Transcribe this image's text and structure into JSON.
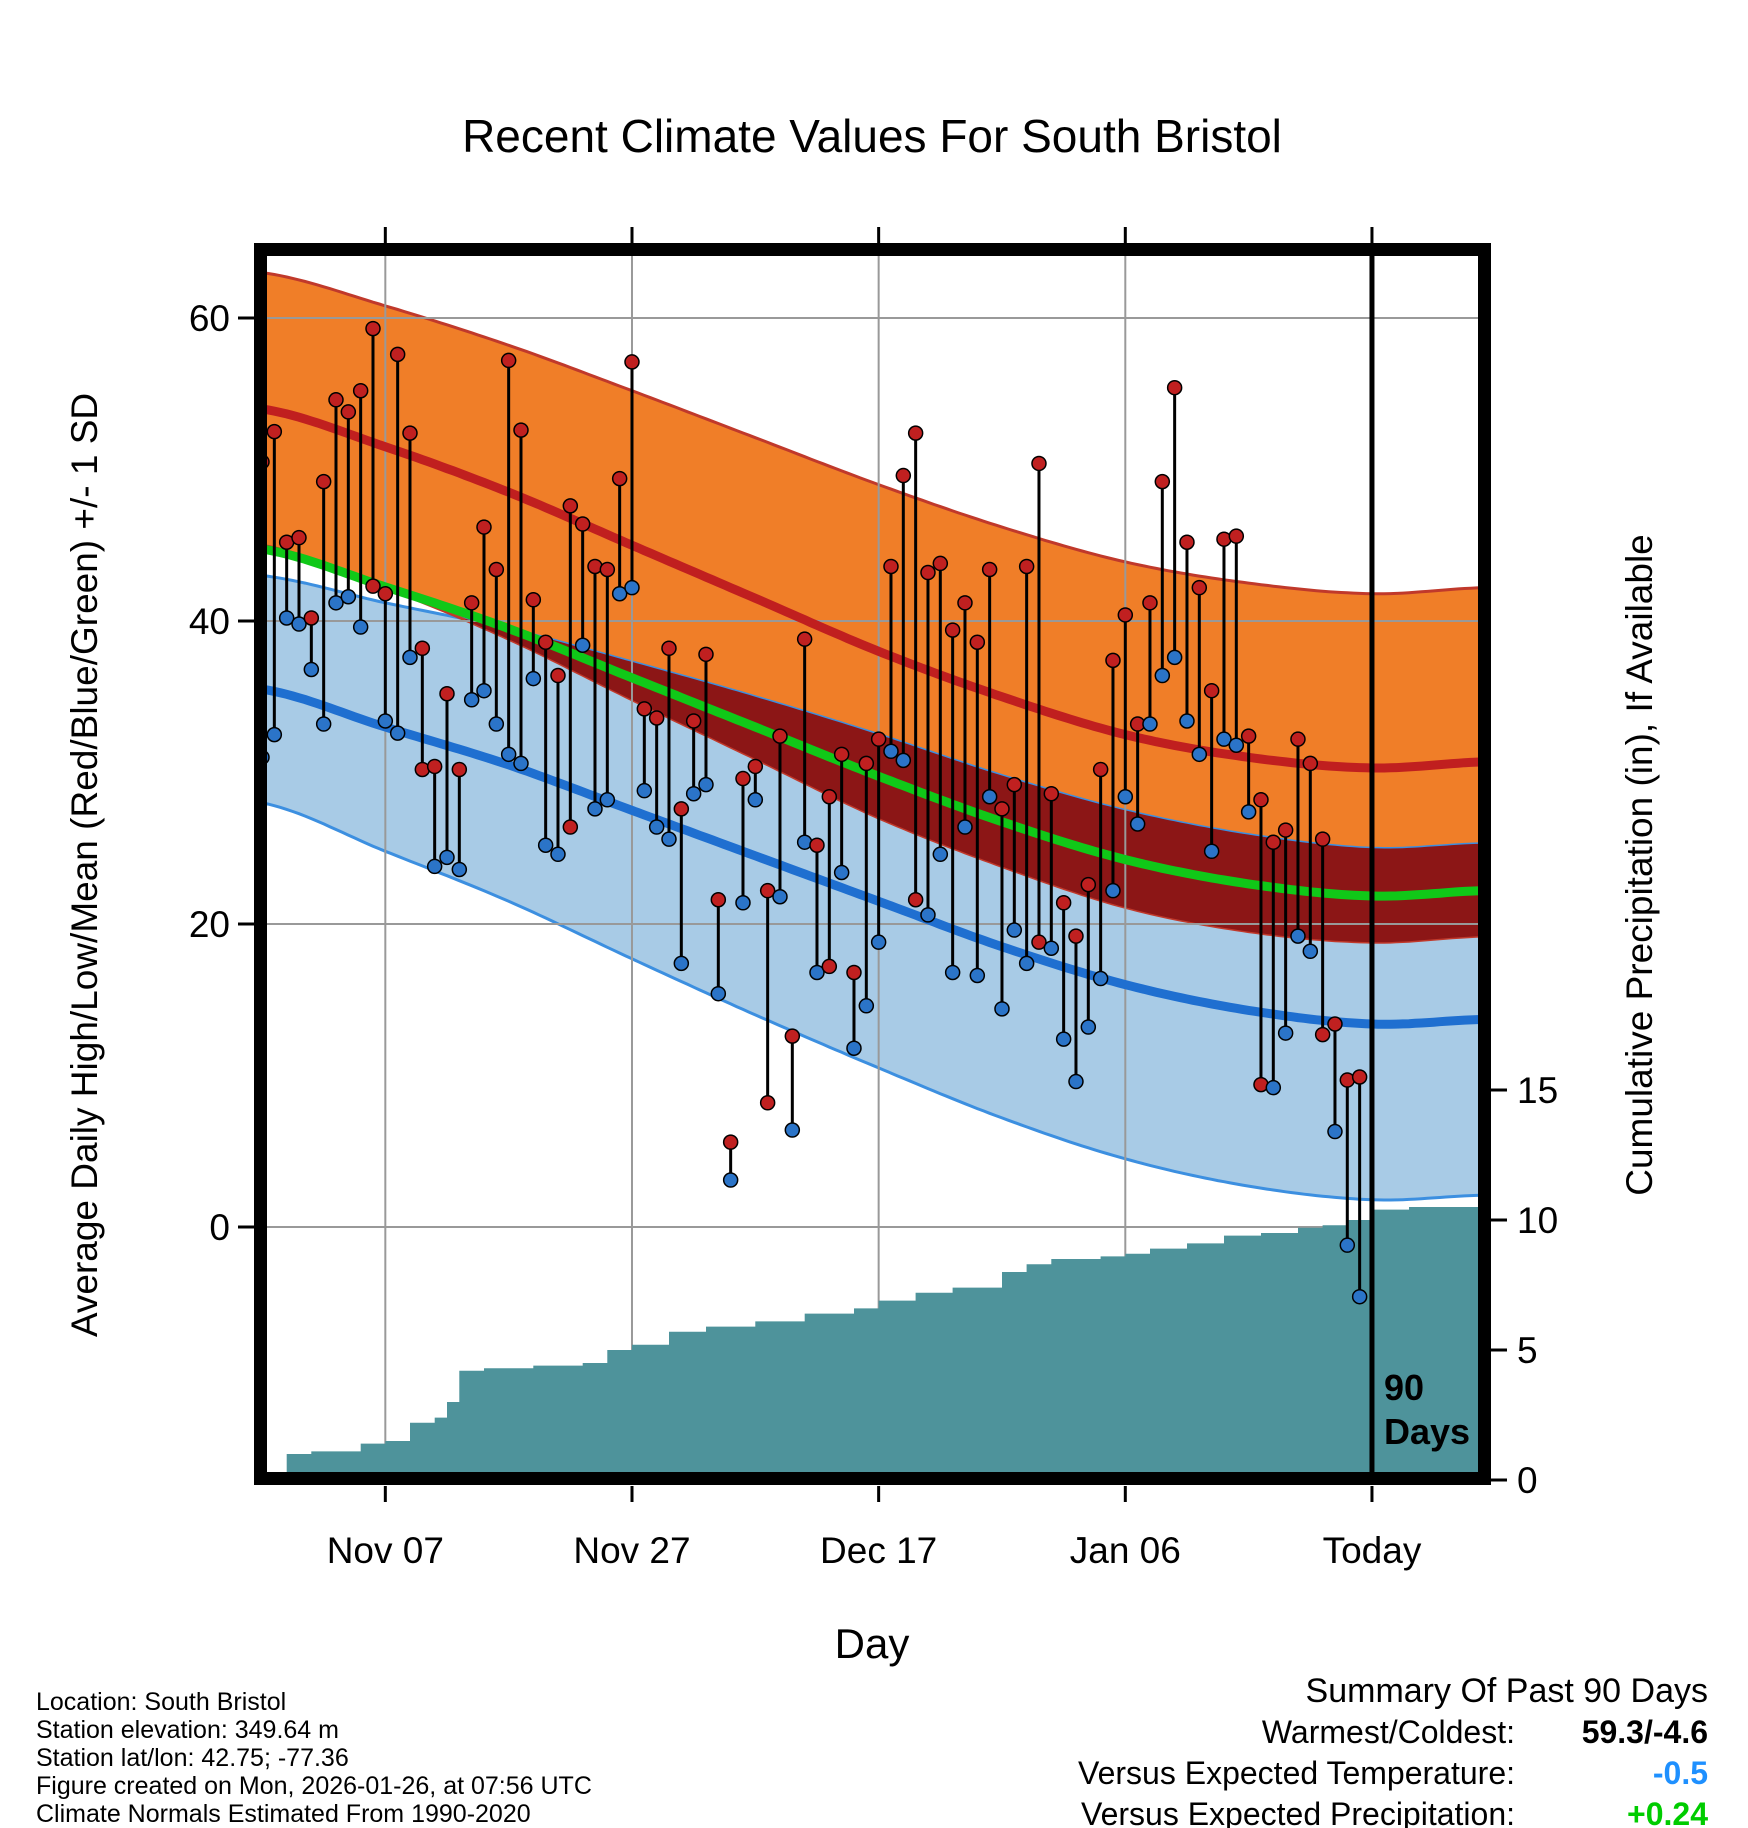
{
  "title": "Recent Climate Values For South Bristol",
  "axes": {
    "x_label": "Day",
    "y_left_label": "Average Daily High/Low/Mean (Red/Blue/Green) +/- 1 SD",
    "y_right_label": "Cumulative Precipitation (in), If Available",
    "y_left_ticks": [
      60,
      40,
      20,
      0
    ],
    "y_right_ticks": [
      15,
      10,
      5,
      0
    ],
    "x_ticks": [
      {
        "day": 10,
        "label": "Nov 07"
      },
      {
        "day": 30,
        "label": "Nov 27"
      },
      {
        "day": 50,
        "label": "Dec 17"
      },
      {
        "day": 70,
        "label": "Jan 06"
      },
      {
        "day": 90,
        "label": "Today"
      }
    ]
  },
  "chart_data": {
    "type": "line",
    "title": "Recent Climate Values For South Bristol",
    "xlabel": "Day",
    "ylabel_left": "Average Daily High/Low/Mean (Red/Blue/Green) +/- 1 SD",
    "ylabel_right": "Cumulative Precipitation (in), If Available",
    "x_range_days": [
      0,
      99
    ],
    "ylim_left": [
      -17,
      64
    ],
    "today_day": 90,
    "normals": {
      "sample_days": [
        0,
        10,
        20,
        30,
        40,
        50,
        60,
        70,
        80,
        90,
        99
      ],
      "high_mean": [
        54.0,
        51.5,
        48.5,
        45.0,
        41.5,
        38.0,
        35.0,
        32.5,
        31.0,
        30.3,
        30.7
      ],
      "high_sd": [
        9.0,
        9.3,
        9.7,
        10.2,
        10.6,
        11.0,
        11.2,
        11.4,
        11.5,
        11.5,
        11.5
      ],
      "low_mean": [
        35.5,
        33.0,
        30.5,
        27.5,
        24.5,
        21.5,
        18.5,
        16.0,
        14.3,
        13.4,
        13.7
      ],
      "low_sd": [
        7.5,
        8.2,
        9.0,
        9.8,
        10.5,
        11.0,
        11.3,
        11.5,
        11.6,
        11.6,
        11.6
      ]
    },
    "daily": {
      "start_day": 0,
      "high": [
        50.5,
        52.5,
        45.2,
        45.5,
        40.2,
        49.2,
        54.6,
        53.8,
        55.2,
        59.3,
        41.8,
        57.6,
        52.4,
        38.2,
        30.4,
        35.2,
        30.2,
        41.2,
        46.2,
        43.4,
        57.2,
        52.6,
        41.4,
        38.6,
        36.4,
        47.6,
        46.4,
        43.6,
        43.4,
        49.4,
        57.1,
        34.2,
        33.6,
        38.2,
        27.6,
        33.4,
        37.8,
        21.6,
        5.6,
        29.6,
        30.4,
        22.2,
        32.4,
        12.6,
        38.8,
        25.2,
        28.4,
        31.2,
        16.8,
        30.6,
        32.2,
        43.6,
        49.6,
        52.4,
        43.2,
        43.8,
        39.4,
        41.2,
        38.6,
        43.4,
        27.6,
        29.2,
        43.6,
        50.4,
        28.6,
        21.4,
        19.2,
        22.6,
        30.2,
        37.4,
        40.4,
        33.2,
        41.2,
        49.2,
        55.4,
        45.2,
        42.2,
        35.4,
        45.4,
        45.6,
        32.4,
        28.2,
        25.4,
        26.2,
        32.2,
        30.6,
        25.6,
        13.4,
        9.7,
        9.9
      ],
      "low": [
        31.0,
        32.5,
        40.2,
        39.8,
        36.8,
        33.2,
        41.2,
        41.6,
        39.6,
        42.3,
        33.4,
        32.6,
        37.6,
        30.2,
        23.8,
        24.4,
        23.6,
        34.8,
        35.4,
        33.2,
        31.2,
        30.6,
        36.2,
        25.2,
        24.6,
        26.4,
        38.4,
        27.6,
        28.2,
        41.8,
        42.2,
        28.8,
        26.4,
        25.6,
        17.4,
        28.6,
        29.2,
        15.4,
        3.1,
        21.4,
        28.2,
        8.2,
        21.8,
        6.4,
        25.4,
        16.8,
        17.2,
        23.4,
        11.8,
        14.6,
        18.8,
        31.4,
        30.8,
        21.6,
        20.6,
        24.6,
        16.8,
        26.4,
        16.6,
        28.4,
        14.4,
        19.6,
        17.4,
        18.8,
        18.4,
        12.4,
        9.6,
        13.2,
        16.4,
        22.2,
        28.4,
        26.6,
        33.2,
        36.4,
        37.6,
        33.4,
        31.2,
        24.8,
        32.2,
        31.8,
        27.4,
        9.4,
        9.2,
        12.8,
        19.2,
        18.2,
        12.7,
        6.3,
        -1.2,
        -4.6
      ],
      "red_low_days": [
        9,
        13,
        25,
        41,
        46,
        53,
        63,
        81,
        86
      ]
    },
    "precip_cumulative": {
      "days": [
        2,
        4,
        8,
        10,
        12,
        14,
        15,
        16,
        18,
        22,
        26,
        28,
        30,
        33,
        36,
        40,
        44,
        48,
        50,
        53,
        56,
        60,
        62,
        64,
        68,
        70,
        72,
        75,
        78,
        81,
        84,
        86,
        88,
        90,
        93,
        99
      ],
      "values": [
        1.0,
        1.1,
        1.4,
        1.5,
        2.2,
        2.4,
        3.0,
        4.2,
        4.3,
        4.4,
        4.5,
        5.0,
        5.2,
        5.7,
        5.9,
        6.1,
        6.4,
        6.6,
        6.9,
        7.2,
        7.4,
        8.0,
        8.3,
        8.5,
        8.6,
        8.7,
        8.9,
        9.1,
        9.4,
        9.5,
        9.7,
        9.8,
        10.0,
        10.4,
        10.5,
        10.5
      ]
    },
    "annotations": {
      "ninety_top": "90",
      "ninety_bottom": "Days"
    }
  },
  "colors": {
    "orange_band": "#f07e28",
    "orange_edge": "#c0392b",
    "high_mean_line": "#c01f1f",
    "maroon_overlap": "#8c1616",
    "blue_band": "#a8cbe6",
    "blue_edge": "#3c8fe0",
    "low_mean_line": "#1f6fd0",
    "mean_line": "#10c818",
    "precip_fill": "#4e939b",
    "grid": "#999999",
    "high_dot": "#c02020",
    "low_dot": "#2b74c8"
  },
  "footer": {
    "lines": [
      "Location: South Bristol",
      "Station elevation: 349.64 m",
      "Station lat/lon: 42.75; -77.36",
      "Figure created on Mon, 2026-01-26, at 07:56 UTC",
      "Climate Normals Estimated From 1990-2020"
    ]
  },
  "summary": {
    "title": "Summary Of Past 90 Days",
    "rows": [
      {
        "label": "Warmest/Coldest:",
        "value": "59.3/-4.6",
        "color": "#000000"
      },
      {
        "label": "Versus Expected Temperature:",
        "value": "-0.5",
        "color": "#1e90ff"
      },
      {
        "label": "Versus Expected Precipitation:",
        "value": "+0.24",
        "color": "#00cc00"
      }
    ]
  }
}
